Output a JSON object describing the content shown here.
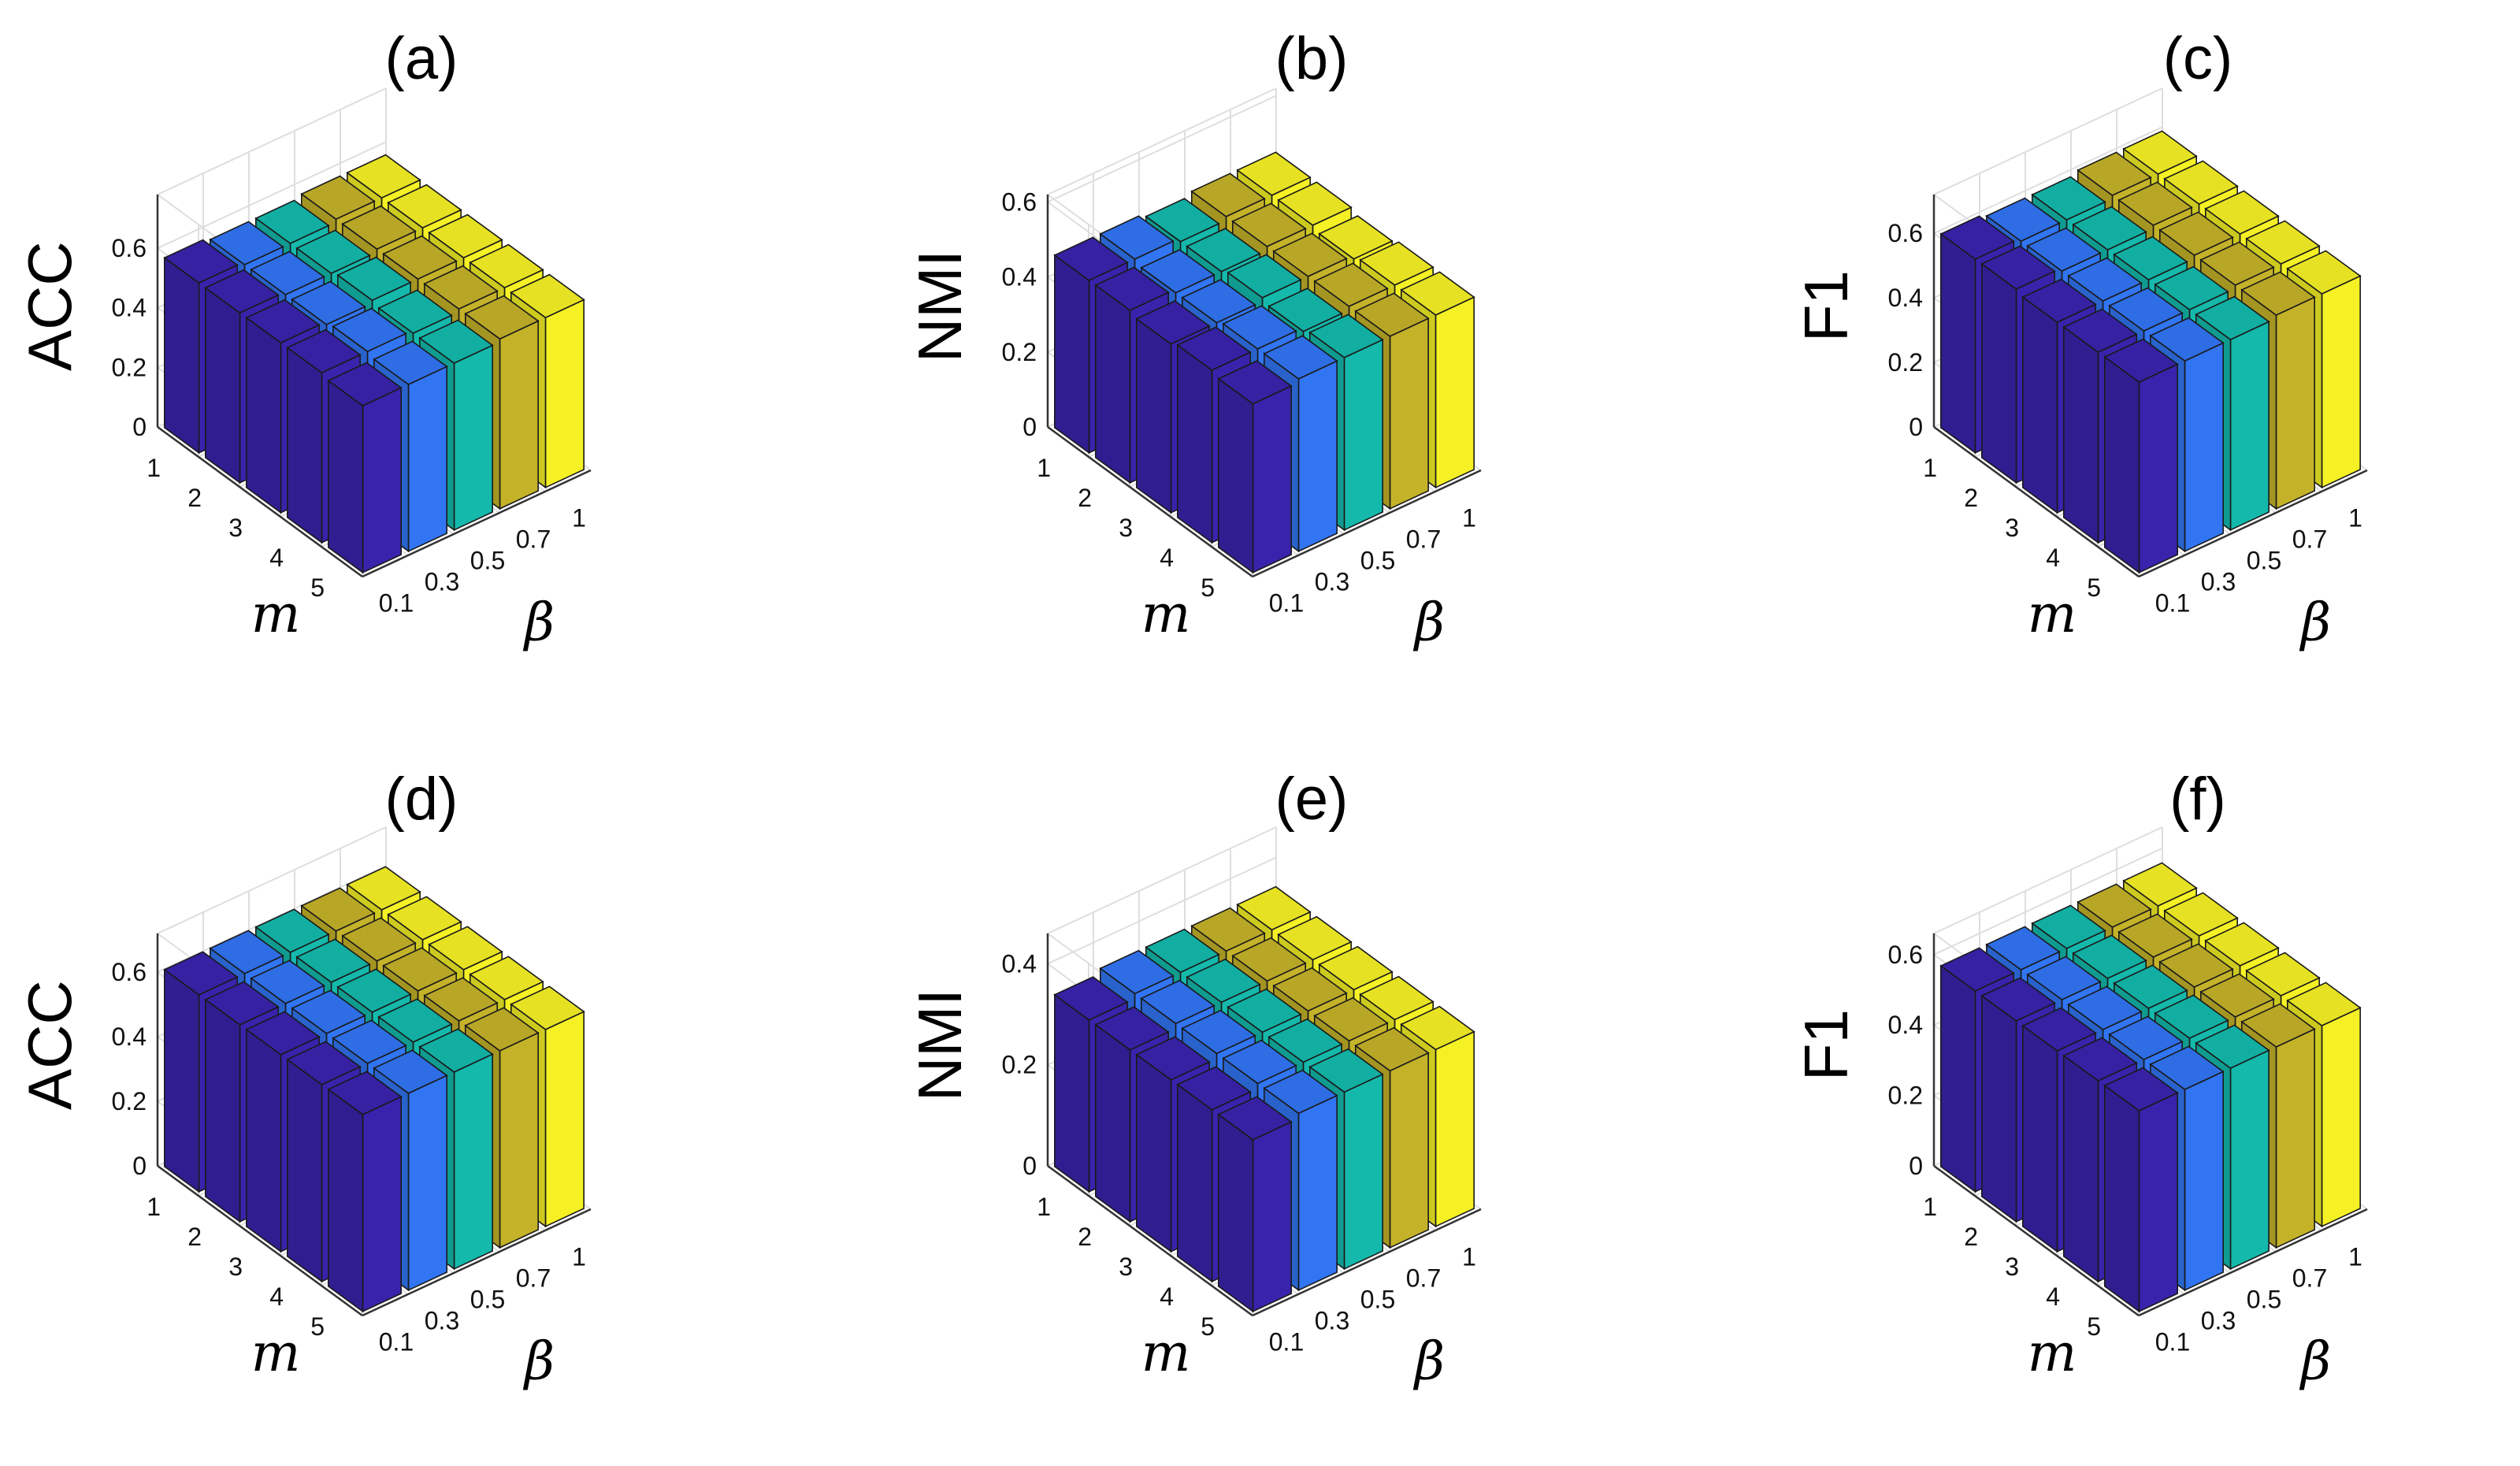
{
  "chart_data": [
    {
      "type": "bar3d",
      "title": "(a)",
      "zlabel": "ACC",
      "xlabel": "m",
      "ylabel": "β",
      "m_ticks": [
        "1",
        "2",
        "3",
        "4",
        "5"
      ],
      "beta_ticks": [
        "0.1",
        "0.3",
        "0.5",
        "0.7",
        "1"
      ],
      "z_ticks": [
        "0",
        "0.2",
        "0.4",
        "0.6"
      ],
      "zlim": [
        0,
        0.78
      ],
      "values": [
        [
          0.57,
          0.56,
          0.56,
          0.57,
          0.57
        ],
        [
          0.57,
          0.56,
          0.56,
          0.57,
          0.57
        ],
        [
          0.57,
          0.56,
          0.57,
          0.57,
          0.57
        ],
        [
          0.57,
          0.57,
          0.56,
          0.57,
          0.57
        ],
        [
          0.56,
          0.56,
          0.56,
          0.57,
          0.57
        ]
      ]
    },
    {
      "type": "bar3d",
      "title": "(b)",
      "zlabel": "NMI",
      "xlabel": "m",
      "ylabel": "β",
      "m_ticks": [
        "1",
        "2",
        "3",
        "4",
        "5"
      ],
      "beta_ticks": [
        "0.1",
        "0.3",
        "0.5",
        "0.7",
        "1"
      ],
      "z_ticks": [
        "0",
        "0.2",
        "0.4",
        "0.6"
      ],
      "zlim": [
        0,
        0.62
      ],
      "values": [
        [
          0.46,
          0.46,
          0.45,
          0.46,
          0.46
        ],
        [
          0.46,
          0.45,
          0.45,
          0.46,
          0.46
        ],
        [
          0.45,
          0.45,
          0.46,
          0.46,
          0.45
        ],
        [
          0.46,
          0.46,
          0.45,
          0.46,
          0.46
        ],
        [
          0.45,
          0.46,
          0.46,
          0.46,
          0.46
        ]
      ]
    },
    {
      "type": "bar3d",
      "title": "(c)",
      "zlabel": "F1",
      "xlabel": "m",
      "ylabel": "β",
      "m_ticks": [
        "1",
        "2",
        "3",
        "4",
        "5"
      ],
      "beta_ticks": [
        "0.1",
        "0.3",
        "0.5",
        "0.7",
        "1"
      ],
      "z_ticks": [
        "0",
        "0.2",
        "0.4",
        "0.6"
      ],
      "zlim": [
        0,
        0.72
      ],
      "values": [
        [
          0.6,
          0.59,
          0.59,
          0.6,
          0.6
        ],
        [
          0.6,
          0.59,
          0.59,
          0.6,
          0.6
        ],
        [
          0.59,
          0.59,
          0.59,
          0.6,
          0.6
        ],
        [
          0.59,
          0.59,
          0.59,
          0.6,
          0.6
        ],
        [
          0.59,
          0.59,
          0.59,
          0.6,
          0.6
        ]
      ]
    },
    {
      "type": "bar3d",
      "title": "(d)",
      "zlabel": "ACC",
      "xlabel": "m",
      "ylabel": "β",
      "m_ticks": [
        "1",
        "2",
        "3",
        "4",
        "5"
      ],
      "beta_ticks": [
        "0.1",
        "0.3",
        "0.5",
        "0.7",
        "1"
      ],
      "z_ticks": [
        "0",
        "0.2",
        "0.4",
        "0.6"
      ],
      "zlim": [
        0,
        0.72
      ],
      "values": [
        [
          0.61,
          0.61,
          0.61,
          0.61,
          0.61
        ],
        [
          0.61,
          0.61,
          0.61,
          0.61,
          0.61
        ],
        [
          0.61,
          0.61,
          0.61,
          0.61,
          0.61
        ],
        [
          0.61,
          0.61,
          0.61,
          0.61,
          0.61
        ],
        [
          0.61,
          0.61,
          0.61,
          0.61,
          0.61
        ]
      ]
    },
    {
      "type": "bar3d",
      "title": "(e)",
      "zlabel": "NMI",
      "xlabel": "m",
      "ylabel": "β",
      "m_ticks": [
        "1",
        "2",
        "3",
        "4",
        "5"
      ],
      "beta_ticks": [
        "0.1",
        "0.3",
        "0.5",
        "0.7",
        "1"
      ],
      "z_ticks": [
        "0",
        "0.2",
        "0.4"
      ],
      "zlim": [
        0,
        0.46
      ],
      "values": [
        [
          0.34,
          0.35,
          0.35,
          0.35,
          0.35
        ],
        [
          0.34,
          0.35,
          0.35,
          0.35,
          0.35
        ],
        [
          0.34,
          0.35,
          0.35,
          0.35,
          0.35
        ],
        [
          0.34,
          0.35,
          0.35,
          0.35,
          0.35
        ],
        [
          0.34,
          0.35,
          0.35,
          0.35,
          0.35
        ]
      ]
    },
    {
      "type": "bar3d",
      "title": "(f)",
      "zlabel": "F1",
      "xlabel": "m",
      "ylabel": "β",
      "m_ticks": [
        "1",
        "2",
        "3",
        "4",
        "5"
      ],
      "beta_ticks": [
        "0.1",
        "0.3",
        "0.5",
        "0.7",
        "1"
      ],
      "z_ticks": [
        "0",
        "0.2",
        "0.4",
        "0.6"
      ],
      "zlim": [
        0,
        0.66
      ],
      "values": [
        [
          0.57,
          0.57,
          0.57,
          0.57,
          0.57
        ],
        [
          0.57,
          0.57,
          0.57,
          0.57,
          0.57
        ],
        [
          0.57,
          0.57,
          0.57,
          0.57,
          0.57
        ],
        [
          0.57,
          0.57,
          0.57,
          0.57,
          0.57
        ],
        [
          0.57,
          0.57,
          0.57,
          0.57,
          0.57
        ]
      ]
    }
  ],
  "colors": {
    "beta_series": [
      "#3a24b0",
      "#3277f8",
      "#14bdb0",
      "#c8b62a",
      "#faf626"
    ],
    "grid": "#dedede",
    "edge": "#1a1a1a"
  }
}
